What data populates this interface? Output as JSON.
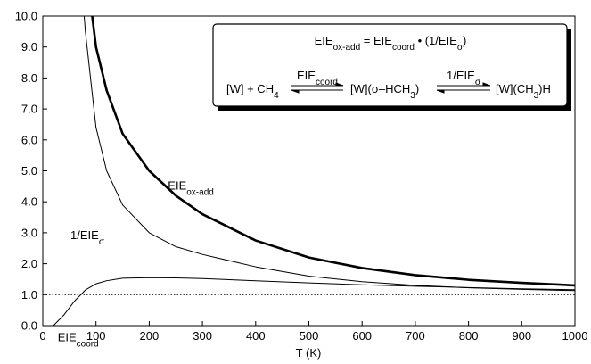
{
  "chart_data": {
    "type": "line",
    "x_label": "T (K)",
    "x": [
      20,
      40,
      60,
      80,
      100,
      120,
      150,
      200,
      250,
      300,
      400,
      500,
      600,
      700,
      800,
      900,
      1000
    ],
    "series": [
      {
        "label": [
          {
            "t": "EIE"
          },
          {
            "sub": "ox-add"
          }
        ],
        "color": "#000000",
        "width": 2.6,
        "values": [
          null,
          null,
          null,
          11.8,
          9.0,
          7.6,
          6.2,
          5.0,
          4.2,
          3.6,
          2.75,
          2.2,
          1.86,
          1.63,
          1.48,
          1.38,
          1.3
        ]
      },
      {
        "label": [
          {
            "t": "1/EIE"
          },
          {
            "sub": "σ"
          }
        ],
        "color": "#000000",
        "width": 1,
        "values": [
          null,
          null,
          14.0,
          9.5,
          6.4,
          5.0,
          3.9,
          3.0,
          2.55,
          2.3,
          1.9,
          1.6,
          1.42,
          1.3,
          1.22,
          1.17,
          1.13
        ]
      },
      {
        "label": [
          {
            "t": "EIE"
          },
          {
            "sub": "coord"
          }
        ],
        "color": "#000000",
        "width": 1,
        "values": [
          0.0,
          0.35,
          0.8,
          1.15,
          1.35,
          1.45,
          1.53,
          1.55,
          1.54,
          1.52,
          1.45,
          1.38,
          1.32,
          1.27,
          1.23,
          1.19,
          1.16
        ]
      }
    ],
    "reference_line": 1.0,
    "equation": [
      {
        "t": "EIE"
      },
      {
        "sub": "ox-add"
      },
      {
        "t": " = EIE"
      },
      {
        "sub": "coord"
      },
      {
        "t": " • (1/EIE"
      },
      {
        "sub": "σ"
      },
      {
        "t": ")"
      }
    ],
    "reaction": {
      "species": [
        [
          {
            "t": "[W] + CH"
          },
          {
            "sub": "4"
          }
        ],
        [
          {
            "t": "[W](σ–HCH"
          },
          {
            "sub": "3"
          },
          {
            "t": ")"
          }
        ],
        [
          {
            "t": "[W](CH"
          },
          {
            "sub": "3"
          },
          {
            "t": ")H"
          }
        ]
      ],
      "arrows": [
        [
          {
            "t": "EIE"
          },
          {
            "sub": "coord"
          }
        ],
        [
          {
            "t": "1/EIE"
          },
          {
            "sub": "σ"
          }
        ]
      ]
    },
    "xlim": [
      0,
      1000
    ],
    "xticks": [
      0,
      100,
      200,
      300,
      400,
      500,
      600,
      700,
      800,
      900,
      1000
    ],
    "ylim": [
      0,
      10
    ],
    "yticks": [
      {
        "value": 0,
        "label": "0.0"
      },
      {
        "value": 1,
        "label": "1.0"
      },
      {
        "value": 2,
        "label": "2.0"
      },
      {
        "value": 3,
        "label": "3.0"
      },
      {
        "value": 4,
        "label": "4.0"
      },
      {
        "value": 5,
        "label": "5.0"
      },
      {
        "value": 6,
        "label": "6.0"
      },
      {
        "value": 7,
        "label": "7.0"
      },
      {
        "value": 8,
        "label": "8.0"
      },
      {
        "value": 9,
        "label": "9.0"
      },
      {
        "value": 10,
        "label": "10.0"
      }
    ]
  }
}
